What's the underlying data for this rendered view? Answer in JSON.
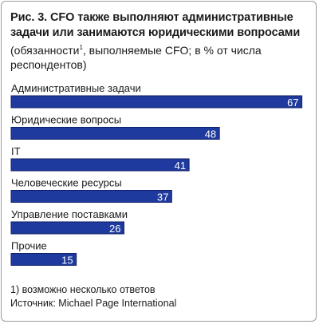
{
  "title": "Рис. 3. CFO также выполняют административные задачи или занимаются юридическими вопросами",
  "subtitle": {
    "before": "(обязанности",
    "sup": "1",
    "after": ", выполняемые CFO; в % от числа респондентов)"
  },
  "footnote": "1) возможно несколько ответов",
  "source": "Источник: Michael Page International",
  "colors": {
    "bar": "#1f3a9e",
    "bar_edge": "#0f1f66",
    "value_text": "#ffffff"
  },
  "chart_data": {
    "type": "bar",
    "orientation": "horizontal",
    "categories": [
      "Административные задачи",
      "Юридические вопросы",
      "IT",
      "Человеческие ресурсы",
      "Управление поставками",
      "Прочие"
    ],
    "values": [
      67,
      48,
      41,
      37,
      26,
      15
    ],
    "xlim": [
      0,
      68
    ],
    "grid": false,
    "legend": "none"
  }
}
